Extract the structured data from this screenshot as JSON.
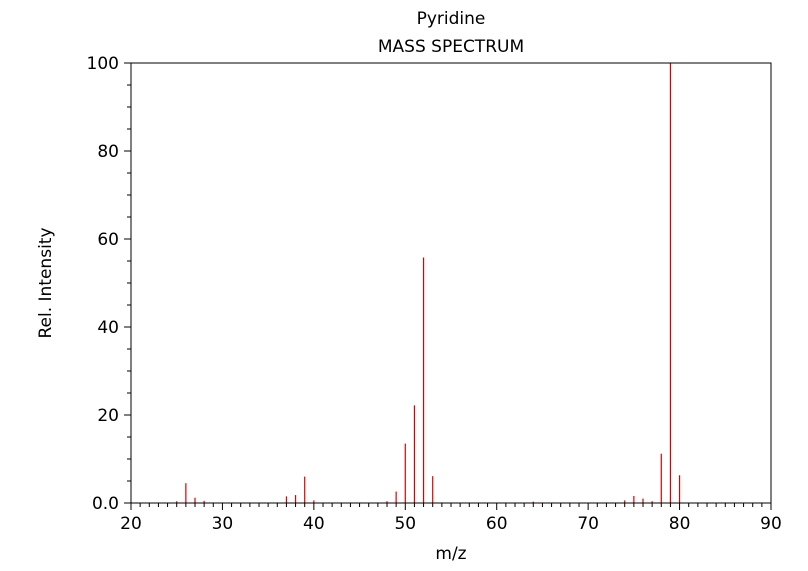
{
  "chart_data": {
    "type": "bar",
    "title": "Pyridine",
    "subtitle": "MASS SPECTRUM",
    "xlabel": "m/z",
    "ylabel": "Rel. Intensity",
    "xlim": [
      20,
      90
    ],
    "ylim": [
      0,
      100
    ],
    "x_major_ticks": [
      20,
      30,
      40,
      50,
      60,
      70,
      80,
      90
    ],
    "y_major_ticks": [
      0,
      20,
      40,
      60,
      80,
      100
    ],
    "y_tick_labels": [
      "0.0",
      "20",
      "40",
      "60",
      "80",
      "100"
    ],
    "x_tick_labels": [
      "20",
      "30",
      "40",
      "50",
      "60",
      "70",
      "80",
      "90"
    ],
    "grid": false,
    "bar_color": "#dd0000",
    "x": [
      25,
      26,
      27,
      28,
      37,
      38,
      39,
      40,
      48,
      49,
      50,
      51,
      52,
      53,
      64,
      74,
      75,
      76,
      77,
      78,
      79,
      80
    ],
    "values": [
      0.4,
      4.5,
      1.2,
      0.5,
      1.5,
      1.8,
      6.0,
      0.6,
      0.4,
      2.6,
      13.5,
      22.2,
      55.8,
      6.1,
      0.3,
      0.6,
      1.6,
      1.0,
      0.4,
      11.2,
      100.0,
      6.3
    ]
  }
}
